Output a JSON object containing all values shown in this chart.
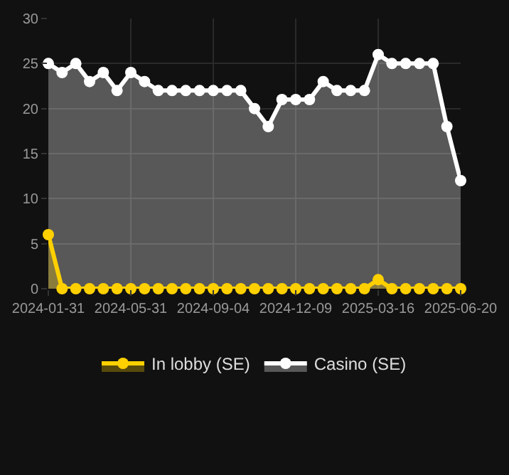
{
  "chart_data": {
    "type": "area",
    "categories": [
      "2024-01-31",
      null,
      null,
      null,
      null,
      null,
      "2024-05-31",
      null,
      null,
      null,
      null,
      null,
      "2024-09-04",
      null,
      null,
      null,
      null,
      null,
      "2024-12-09",
      null,
      null,
      null,
      null,
      null,
      "2025-03-16",
      null,
      null,
      null,
      null,
      null,
      "2025-06-20"
    ],
    "series": [
      {
        "name": "In lobby (SE)",
        "color": "#ffd000",
        "values": [
          6,
          0,
          0,
          0,
          0,
          0,
          0,
          0,
          0,
          0,
          0,
          0,
          0,
          0,
          0,
          0,
          0,
          0,
          0,
          0,
          0,
          0,
          0,
          0,
          1,
          0,
          0,
          0,
          0,
          0,
          0
        ]
      },
      {
        "name": "Casino (SE)",
        "color": "#ffffff",
        "values": [
          25,
          24,
          25,
          23,
          24,
          22,
          24,
          23,
          22,
          22,
          22,
          22,
          22,
          22,
          22,
          20,
          18,
          21,
          21,
          21,
          23,
          22,
          22,
          22,
          26,
          25,
          25,
          25,
          25,
          18,
          12
        ]
      }
    ],
    "ylim": [
      0,
      30
    ],
    "yticks": [
      0,
      5,
      10,
      15,
      20,
      25,
      30
    ],
    "grid": true,
    "legend": "bottom",
    "marker": "circle",
    "line_style": "solid"
  }
}
